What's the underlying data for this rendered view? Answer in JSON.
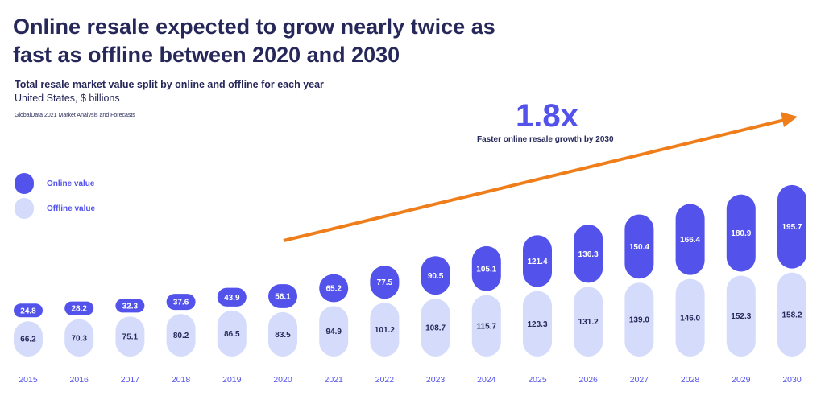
{
  "title": "Online resale expected to grow nearly twice as fast as offline between 2020 and 2030",
  "subtitle": "Total resale market value split by online and offline for each year",
  "units": "United States, $ billions",
  "source": "GlobalData 2021 Market Analysis and Forecasts",
  "annotation": {
    "value": "1.8x",
    "text": "Faster online resale growth by 2030"
  },
  "legend": {
    "online": "Online value",
    "offline": "Offline value"
  },
  "colors": {
    "online": "#5353ec",
    "offline": "#d5dcfb",
    "arrow": "#ee7d1a",
    "title": "#27285a",
    "year_label": "#5353ec"
  },
  "chart_data": {
    "type": "bar",
    "stacked": true,
    "categories": [
      "2015",
      "2016",
      "2017",
      "2018",
      "2019",
      "2020",
      "2021",
      "2022",
      "2023",
      "2024",
      "2025",
      "2026",
      "2027",
      "2028",
      "2029",
      "2030"
    ],
    "series": [
      {
        "name": "Offline value",
        "values": [
          66.2,
          70.3,
          75.1,
          80.2,
          86.5,
          83.5,
          94.9,
          101.2,
          108.7,
          115.7,
          123.3,
          131.2,
          139.0,
          146.0,
          152.3,
          158.2
        ]
      },
      {
        "name": "Online value",
        "values": [
          24.8,
          28.2,
          32.3,
          37.6,
          43.9,
          56.1,
          65.2,
          77.5,
          90.5,
          105.1,
          121.4,
          136.3,
          150.4,
          166.4,
          180.9,
          195.7
        ]
      }
    ],
    "value_labels": {
      "offline": [
        "66.2",
        "70.3",
        "75.1",
        "80.2",
        "86.5",
        "83.5",
        "94.9",
        "101.2",
        "108.7",
        "115.7",
        "123.3",
        "131.2",
        "139.0",
        "146.0",
        "152.3",
        "158.2"
      ],
      "online": [
        "24.8",
        "28.2",
        "32.3",
        "37.6",
        "43.9",
        "56.1",
        "65.2",
        "77.5",
        "90.5",
        "105.1",
        "121.4",
        "136.3",
        "150.4",
        "166.4",
        "180.9",
        "195.7"
      ]
    },
    "legend_position": "left",
    "grid": false,
    "y_axis_visible": false
  }
}
